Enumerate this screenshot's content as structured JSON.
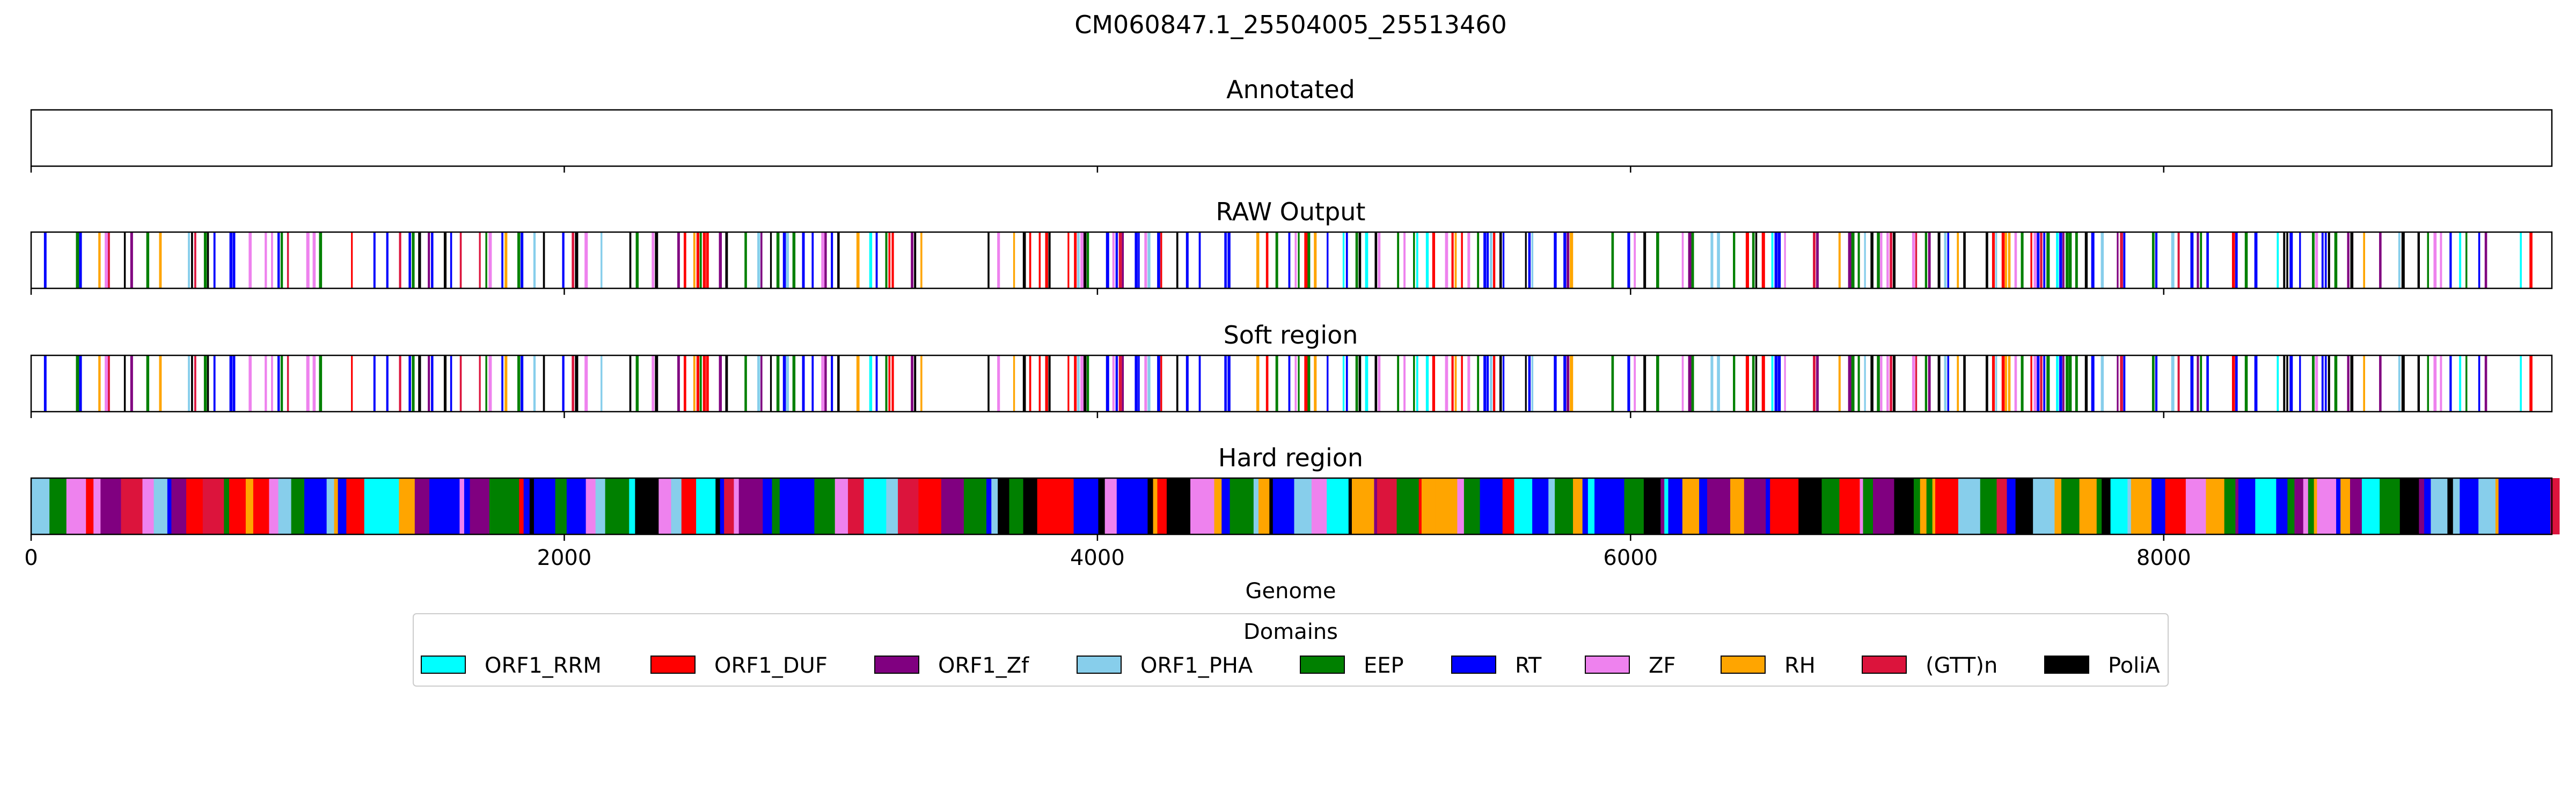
{
  "chart_data": {
    "type": "bar",
    "title": "CM060847.1_25504005_25513460",
    "xlabel": "Genome",
    "xlim": [
      0,
      9456
    ],
    "xticks": [
      0,
      2000,
      4000,
      6000,
      8000
    ],
    "tick_labels": [
      "0",
      "2000",
      "4000",
      "6000",
      "8000"
    ],
    "panels": [
      {
        "title": "Annotated",
        "fill_density": 0.0,
        "band_width": 1.0
      },
      {
        "title": "RAW Output",
        "fill_density": 0.55,
        "band_width": 1.0
      },
      {
        "title": "Soft region",
        "fill_density": 0.55,
        "band_width": 1.0
      },
      {
        "title": "Hard region",
        "fill_density": 1.0,
        "band_width": 20.0
      }
    ],
    "legend": {
      "title": "Domains",
      "location": "lower center",
      "entries": [
        {
          "label": "ORF1_RRM",
          "color": "#00ffff"
        },
        {
          "label": "ORF1_DUF",
          "color": "#ff0000"
        },
        {
          "label": "ORF1_Zf",
          "color": "#800080"
        },
        {
          "label": "ORF1_PHA",
          "color": "#87ceeb"
        },
        {
          "label": "EEP",
          "color": "#008000"
        },
        {
          "label": "RT",
          "color": "#0000ff"
        },
        {
          "label": "ZF",
          "color": "#ee82ee"
        },
        {
          "label": "RH",
          "color": "#ffa500"
        },
        {
          "label": "(GTT)n",
          "color": "#dc143c"
        },
        {
          "label": "PoliA",
          "color": "#000000"
        }
      ]
    }
  }
}
